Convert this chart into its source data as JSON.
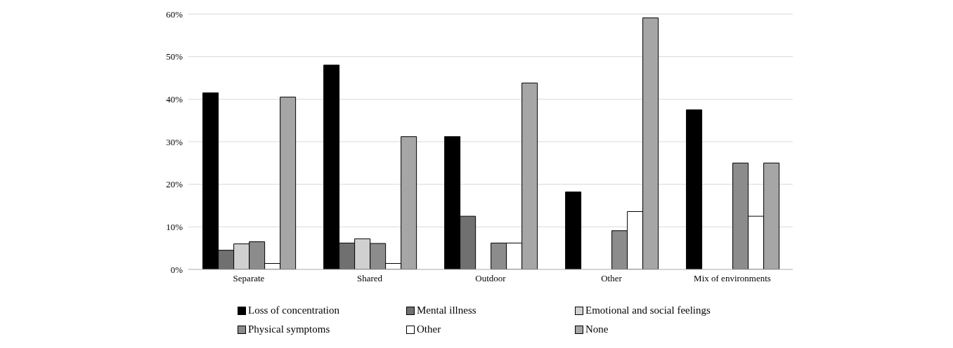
{
  "chart_data": {
    "type": "bar",
    "categories": [
      "Separate",
      "Shared",
      "Outdoor",
      "Other",
      "Mix of environments"
    ],
    "series": [
      {
        "name": "Loss of concentration",
        "color": "#000000",
        "values": [
          41.5,
          48,
          31.2,
          18.2,
          37.5
        ]
      },
      {
        "name": "Mental illness",
        "color": "#707070",
        "values": [
          4.5,
          6.2,
          12.5,
          0,
          0
        ]
      },
      {
        "name": "Emotional and social feelings",
        "color": "#d0d0d0",
        "values": [
          6,
          7.2,
          0,
          0,
          0
        ]
      },
      {
        "name": "Physical symptoms",
        "color": "#8c8c8c",
        "values": [
          6.5,
          6.1,
          6.2,
          9.1,
          25
        ]
      },
      {
        "name": "Other",
        "color": "#ffffff",
        "values": [
          1.4,
          1.4,
          6.2,
          13.6,
          12.5
        ]
      },
      {
        "name": "None",
        "color": "#a6a6a6",
        "values": [
          40.5,
          31.2,
          43.8,
          59.1,
          25
        ]
      }
    ],
    "ylim": [
      0,
      60
    ],
    "yticks": [
      {
        "value": 0,
        "label": "0%"
      },
      {
        "value": 10,
        "label": "10%"
      },
      {
        "value": 20,
        "label": "20%"
      },
      {
        "value": 30,
        "label": "30%"
      },
      {
        "value": 40,
        "label": "40%"
      },
      {
        "value": 50,
        "label": "50%"
      },
      {
        "value": 60,
        "label": "60%"
      }
    ],
    "grid": "y",
    "legend": "bottom"
  }
}
